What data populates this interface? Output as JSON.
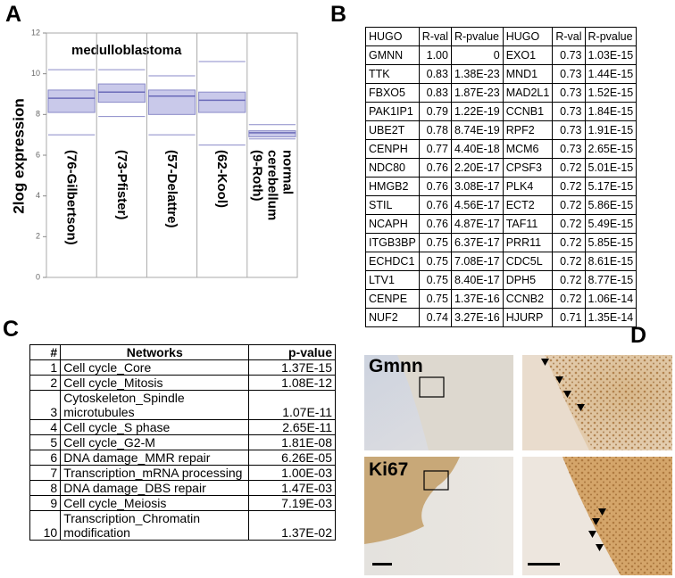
{
  "panel_labels": [
    "A",
    "B",
    "C",
    "D"
  ],
  "chart_data": {
    "type": "box",
    "ylabel": "2log expression",
    "annotation": "medulloblastoma",
    "categories": [
      "(76-Gilbertson)",
      "(73-Pfister)",
      "(57-Delattre)",
      "(62-Kool)",
      "normal\ncerebellum\n(9-Roth)"
    ],
    "boxes": [
      {
        "whislo": 7.0,
        "q1": 8.1,
        "med": 8.8,
        "q3": 9.2,
        "whishi": 10.2
      },
      {
        "whislo": 7.9,
        "q1": 8.6,
        "med": 9.1,
        "q3": 9.5,
        "whishi": 10.2
      },
      {
        "whislo": 7.0,
        "q1": 8.0,
        "med": 8.9,
        "q3": 9.2,
        "whishi": 9.9
      },
      {
        "whislo": 6.5,
        "q1": 8.1,
        "med": 8.7,
        "q3": 9.1,
        "whishi": 10.6
      },
      {
        "whislo": 6.8,
        "q1": 6.9,
        "med": 7.1,
        "q3": 7.2,
        "whishi": 7.5
      }
    ],
    "color": "#c9c9ea",
    "edge_color": "#8a8ac8",
    "ylim": [
      0,
      12
    ],
    "yticks": [
      0,
      2,
      4,
      6,
      8,
      10,
      12
    ]
  },
  "gene_table": {
    "header": [
      "HUGO",
      "R-val",
      "R-pvalue",
      "HUGO",
      "R-val",
      "R-pvalue"
    ],
    "rows": [
      [
        "GMNN",
        "1.00",
        "0",
        "EXO1",
        "0.73",
        "1.03E-15"
      ],
      [
        "TTK",
        "0.83",
        "1.38E-23",
        "MND1",
        "0.73",
        "1.44E-15"
      ],
      [
        "FBXO5",
        "0.83",
        "1.87E-23",
        "MAD2L1",
        "0.73",
        "1.52E-15"
      ],
      [
        "PAK1IP1",
        "0.79",
        "1.22E-19",
        "CCNB1",
        "0.73",
        "1.84E-15"
      ],
      [
        "UBE2T",
        "0.78",
        "8.74E-19",
        "RPF2",
        "0.73",
        "1.91E-15"
      ],
      [
        "CENPH",
        "0.77",
        "4.40E-18",
        "MCM6",
        "0.73",
        "2.65E-15"
      ],
      [
        "NDC80",
        "0.76",
        "2.20E-17",
        "CPSF3",
        "0.72",
        "5.01E-15"
      ],
      [
        "HMGB2",
        "0.76",
        "3.08E-17",
        "PLK4",
        "0.72",
        "5.17E-15"
      ],
      [
        "STIL",
        "0.76",
        "4.56E-17",
        "ECT2",
        "0.72",
        "5.86E-15"
      ],
      [
        "NCAPH",
        "0.76",
        "4.87E-17",
        "TAF11",
        "0.72",
        "5.49E-15"
      ],
      [
        "ITGB3BP",
        "0.75",
        "6.37E-17",
        "PRR11",
        "0.72",
        "5.85E-15"
      ],
      [
        "ECHDC1",
        "0.75",
        "7.08E-17",
        "CDC5L",
        "0.72",
        "8.61E-15"
      ],
      [
        "LTV1",
        "0.75",
        "8.40E-17",
        "DPH5",
        "0.72",
        "8.77E-15"
      ],
      [
        "CENPE",
        "0.75",
        "1.37E-16",
        "CCNB2",
        "0.72",
        "1.06E-14"
      ],
      [
        "NUF2",
        "0.74",
        "3.27E-16",
        "HJURP",
        "0.71",
        "1.35E-14"
      ]
    ]
  },
  "network_table": {
    "header": [
      "#",
      "Networks",
      "p-value"
    ],
    "rows": [
      [
        "1",
        "Cell cycle_Core",
        "1.37E-15"
      ],
      [
        "2",
        "Cell cycle_Mitosis",
        "1.08E-12"
      ],
      [
        "3",
        "Cytoskeleton_Spindle microtubules",
        "1.07E-11"
      ],
      [
        "4",
        "Cell cycle_S phase",
        "2.65E-11"
      ],
      [
        "5",
        "Cell cycle_G2-M",
        "1.81E-08"
      ],
      [
        "6",
        "DNA damage_MMR repair",
        "6.26E-05"
      ],
      [
        "7",
        "Transcription_mRNA processing",
        "1.00E-03"
      ],
      [
        "8",
        "DNA damage_DBS repair",
        "1.47E-03"
      ],
      [
        "9",
        "Cell cycle_Meiosis",
        "7.19E-03"
      ],
      [
        "10",
        "Transcription_Chromatin modification",
        "1.37E-02"
      ]
    ]
  },
  "images": {
    "row_labels": [
      "Gmnn",
      "Ki67"
    ]
  }
}
